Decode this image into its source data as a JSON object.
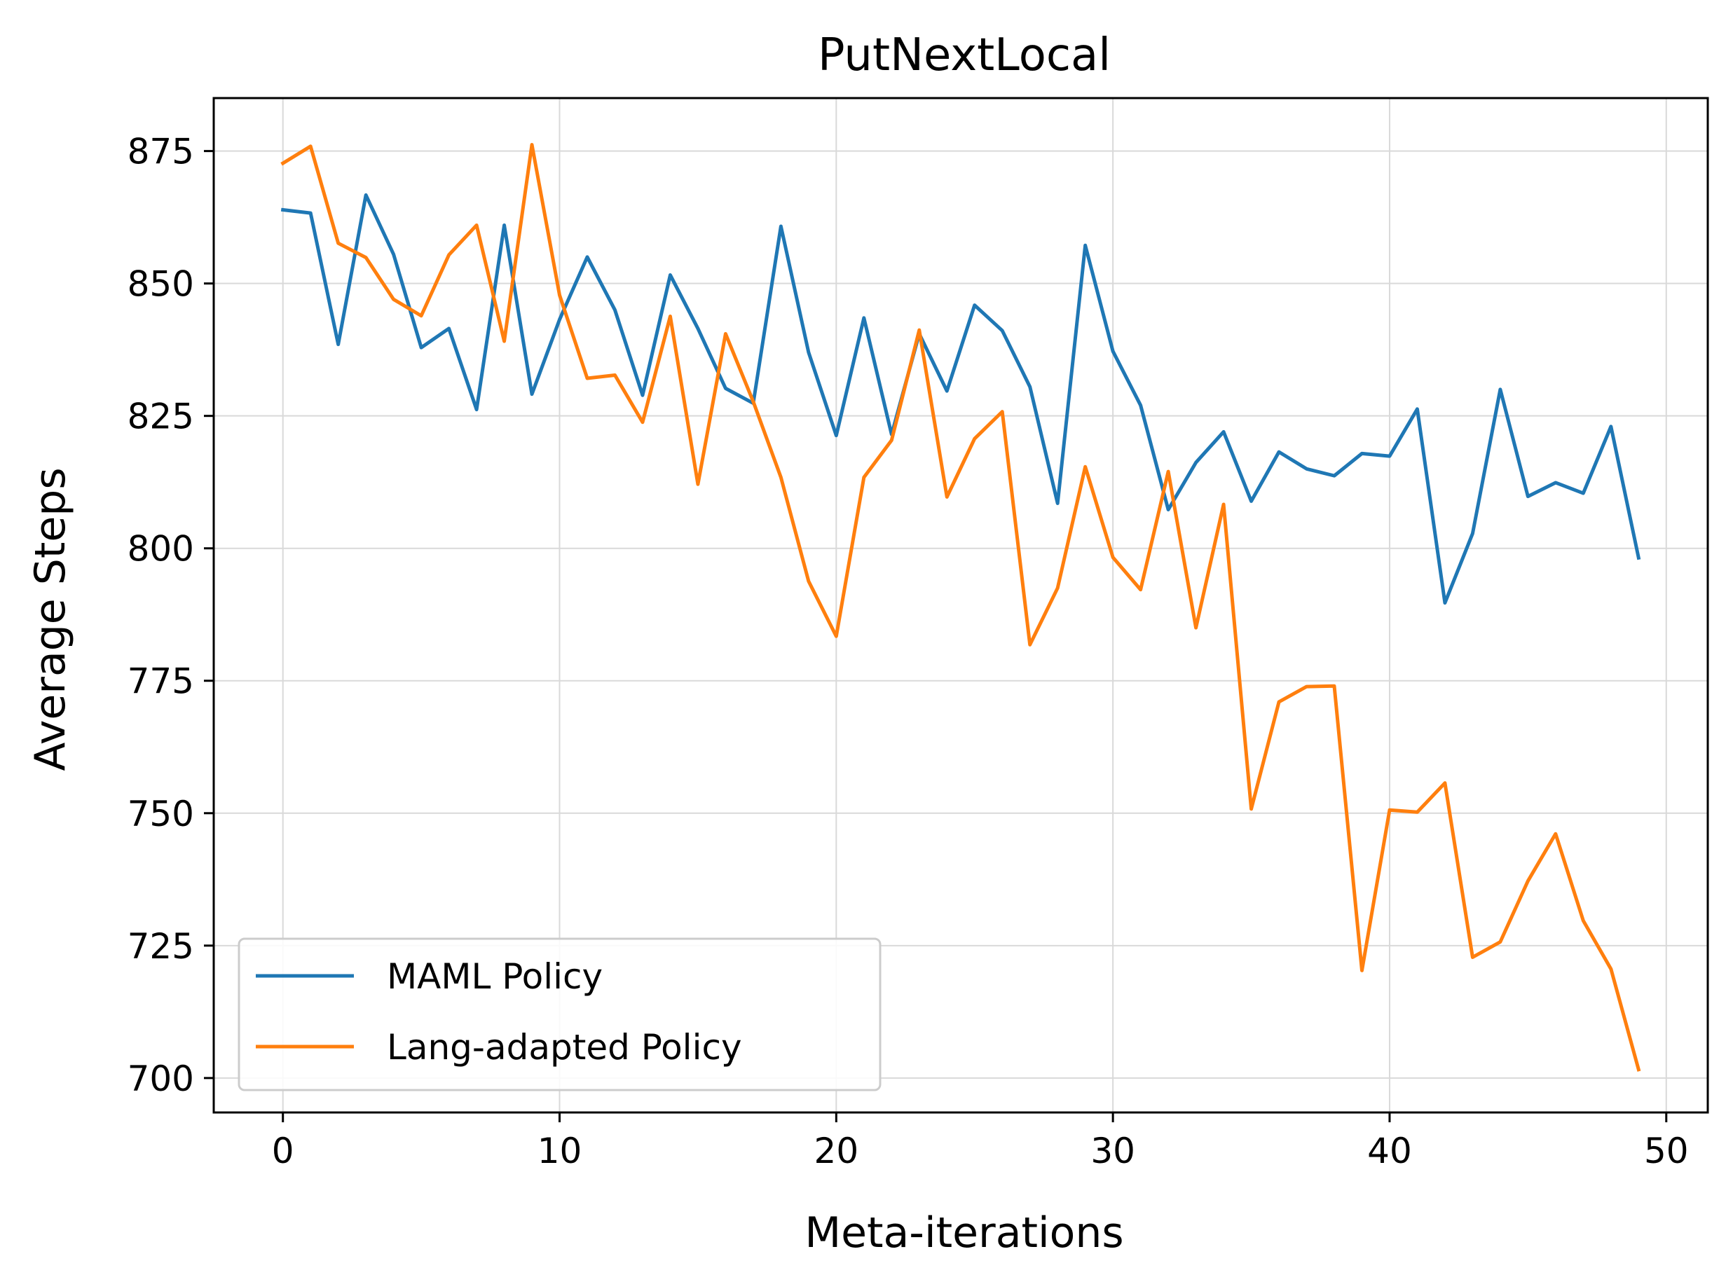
{
  "chart_data": {
    "type": "line",
    "title": "PutNextLocal",
    "xlabel": "Meta-iterations",
    "ylabel": "Average Steps",
    "xlim": [
      -2.5,
      51.5
    ],
    "ylim": [
      693.5,
      885
    ],
    "xticks": [
      0,
      10,
      20,
      30,
      40,
      50
    ],
    "yticks": [
      700,
      725,
      750,
      775,
      800,
      825,
      850,
      875
    ],
    "grid": true,
    "legend": "lower-left",
    "x": [
      0,
      1,
      2,
      3,
      4,
      5,
      6,
      7,
      8,
      9,
      10,
      11,
      12,
      13,
      14,
      15,
      16,
      17,
      18,
      19,
      20,
      21,
      22,
      23,
      24,
      25,
      26,
      27,
      28,
      29,
      30,
      31,
      32,
      33,
      34,
      35,
      36,
      37,
      38,
      39,
      40,
      41,
      42,
      43,
      44,
      45,
      46,
      47,
      48,
      49
    ],
    "series": [
      {
        "name": "MAML Policy",
        "color": "#1f77b4",
        "values": [
          863.9,
          863.3,
          838.5,
          866.7,
          855.5,
          837.9,
          841.5,
          826.2,
          861.0,
          829.1,
          843.2,
          855.0,
          845.0,
          828.9,
          851.6,
          841.5,
          830.2,
          827.4,
          860.8,
          837.0,
          821.3,
          843.5,
          821.5,
          840.5,
          829.7,
          845.9,
          841.1,
          830.5,
          808.5,
          857.2,
          837.2,
          827.0,
          807.3,
          816.2,
          822.0,
          808.9,
          818.2,
          815.0,
          813.7,
          817.9,
          817.4,
          826.3,
          789.7,
          802.8,
          830.0,
          809.8,
          812.4,
          810.4,
          823.0,
          798.2
        ]
      },
      {
        "name": "Lang-adapted Policy",
        "color": "#ff7f0e",
        "values": [
          872.7,
          875.9,
          857.6,
          854.9,
          847.0,
          843.9,
          855.4,
          861.0,
          839.1,
          876.2,
          847.8,
          832.1,
          832.7,
          823.8,
          843.8,
          812.1,
          840.5,
          827.7,
          813.4,
          793.8,
          783.4,
          813.4,
          820.4,
          841.2,
          809.7,
          820.7,
          825.8,
          781.8,
          792.5,
          815.4,
          798.3,
          792.2,
          814.5,
          785.0,
          808.3,
          750.8,
          771.0,
          773.9,
          774.0,
          720.3,
          750.6,
          750.2,
          755.7,
          722.8,
          725.7,
          737.2,
          746.1,
          729.7,
          720.6,
          701.6
        ]
      }
    ]
  }
}
